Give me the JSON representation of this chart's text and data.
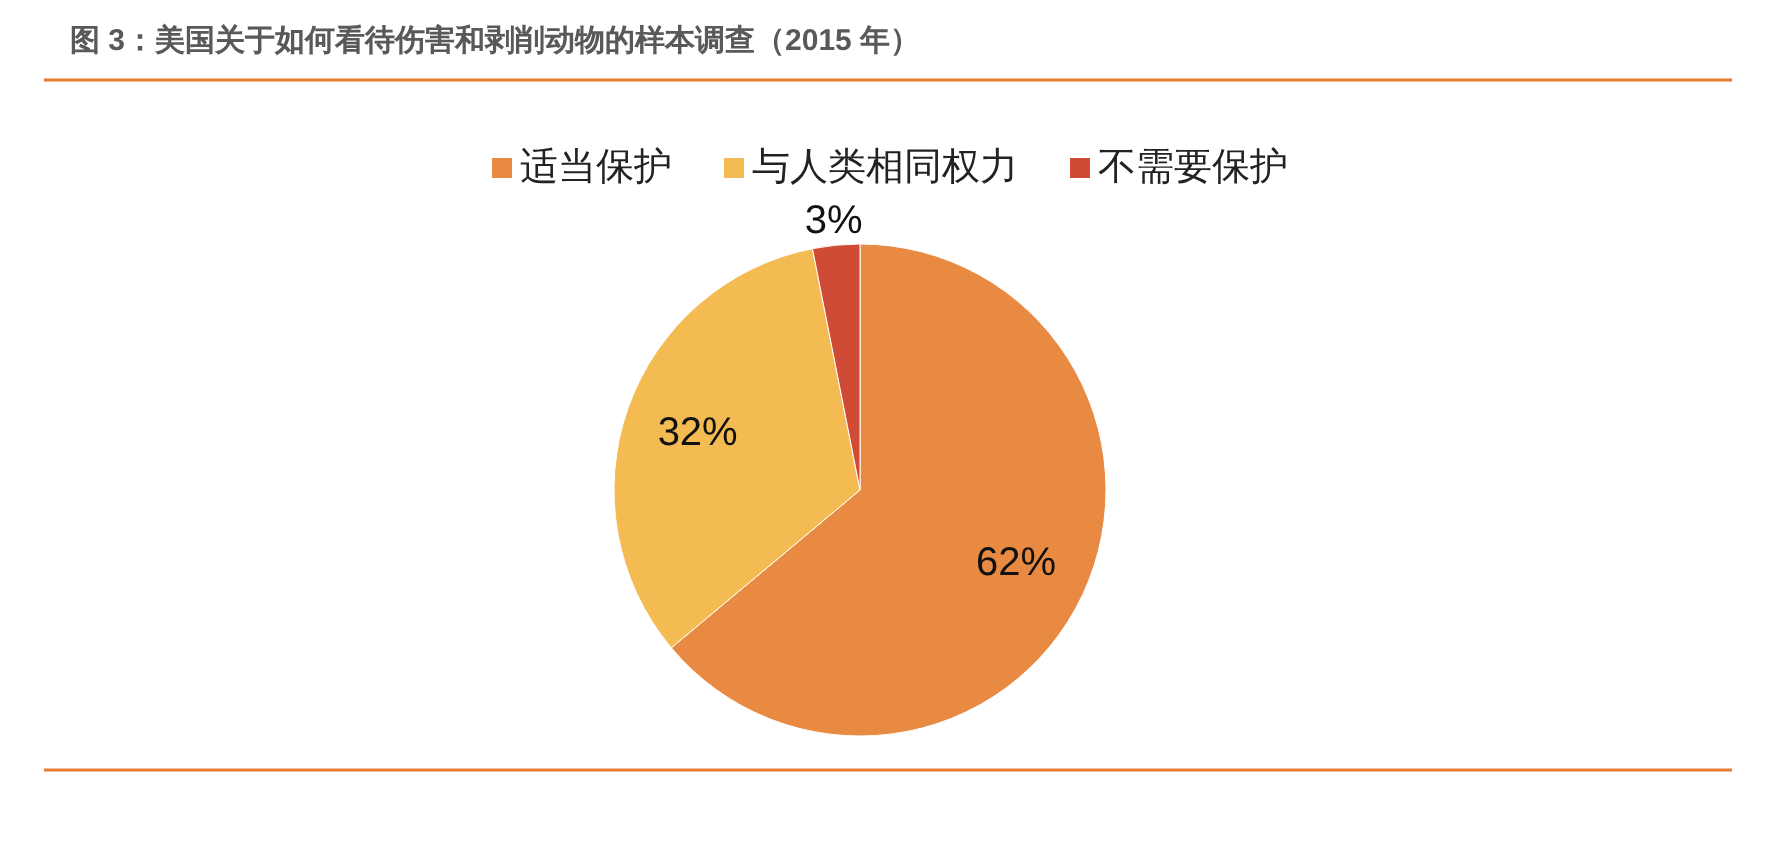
{
  "chart_data": {
    "type": "pie",
    "title": "图 3：美国关于如何看待伤害和剥削动物的样本调查（2015 年）",
    "categories": [
      "适当保护",
      "与人类相同权力",
      "不需要保护"
    ],
    "values": [
      62,
      32,
      3
    ],
    "colors": [
      "#e98a43",
      "#f3bb51",
      "#d04b36"
    ],
    "value_labels": [
      "62%",
      "32%",
      "3%"
    ],
    "legend": "top"
  }
}
